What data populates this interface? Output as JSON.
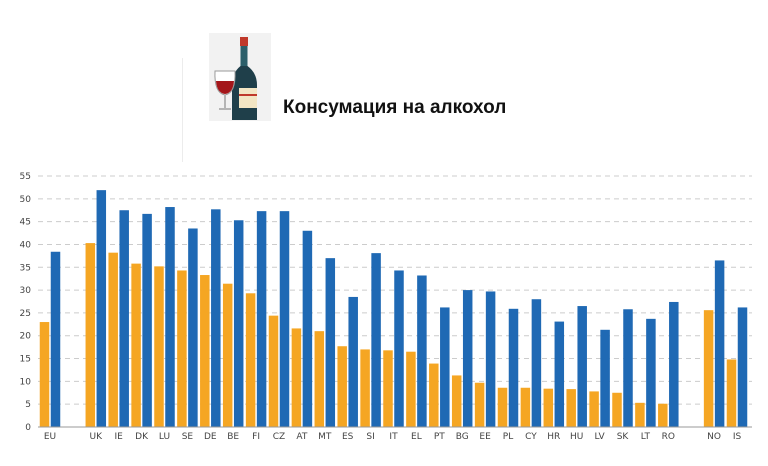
{
  "header": {
    "icon": "wine-bottle-and-glass-icon",
    "title": "Консумация на алкохол"
  },
  "colors": {
    "series_orange": "#f5a623",
    "series_blue": "#1f69b4",
    "grid": "#cccccc",
    "axis": "#999999"
  },
  "chart_data": {
    "type": "bar",
    "title": "Консумация на алкохол",
    "xlabel": "",
    "ylabel": "",
    "ylim": [
      0,
      55
    ],
    "yticks": [
      0,
      5,
      10,
      15,
      20,
      25,
      30,
      35,
      40,
      45,
      50,
      55
    ],
    "grid": true,
    "legend": "none",
    "categories": [
      "EU",
      "UK",
      "IE",
      "DK",
      "LU",
      "SE",
      "DE",
      "BE",
      "FI",
      "CZ",
      "AT",
      "MT",
      "ES",
      "SI",
      "IT",
      "EL",
      "PT",
      "BG",
      "EE",
      "PL",
      "CY",
      "HR",
      "HU",
      "LV",
      "SK",
      "LT",
      "RO",
      "NO",
      "IS"
    ],
    "gap_after": [
      "EU",
      "RO"
    ],
    "series": [
      {
        "color": "#f5a623",
        "values": [
          23,
          40.3,
          38.2,
          35.8,
          35.2,
          34.3,
          33.3,
          31.4,
          29.3,
          24.4,
          21.6,
          21,
          17.7,
          17,
          16.8,
          16.5,
          13.9,
          11.3,
          9.7,
          8.6,
          8.6,
          8.4,
          8.3,
          7.8,
          7.5,
          5.3,
          5.1,
          25.6,
          14.8
        ]
      },
      {
        "color": "#1f69b4",
        "values": [
          38.4,
          51.9,
          47.5,
          46.7,
          48.2,
          43.5,
          47.7,
          45.3,
          47.3,
          47.3,
          43,
          37,
          28.5,
          38.1,
          34.3,
          33.2,
          26.2,
          30,
          29.7,
          25.9,
          28,
          23.1,
          26.5,
          21.3,
          25.8,
          23.7,
          27.4,
          36.5,
          26.2
        ]
      }
    ]
  }
}
